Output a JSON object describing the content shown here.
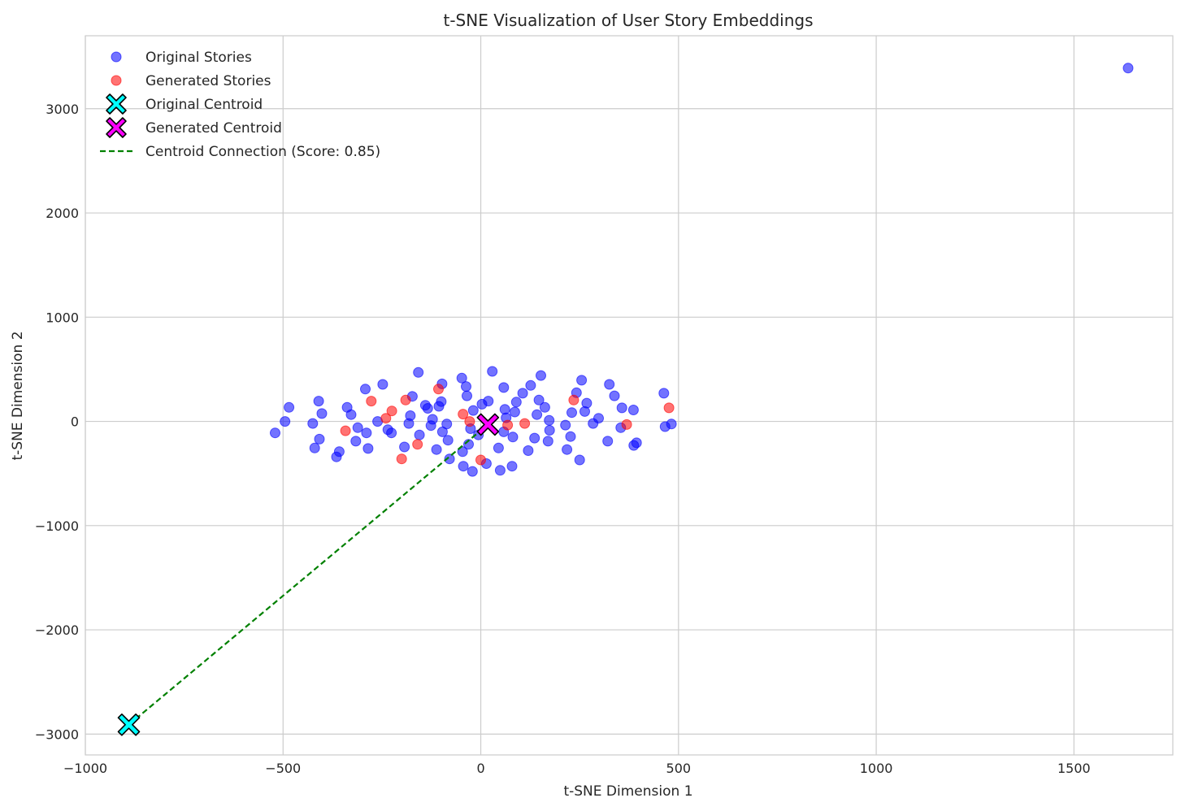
{
  "chart_data": {
    "type": "scatter",
    "title": "t-SNE Visualization of User Story Embeddings",
    "xlabel": "t-SNE Dimension 1",
    "ylabel": "t-SNE Dimension 2",
    "xlim": [
      -1000,
      1750
    ],
    "ylim": [
      -3200,
      3700
    ],
    "xticks": [
      -1000,
      -500,
      0,
      500,
      1000,
      1500
    ],
    "yticks": [
      -3000,
      -2000,
      -1000,
      0,
      1000,
      2000,
      3000
    ],
    "xtick_labels": [
      "−1000",
      "−500",
      "0",
      "500",
      "1000",
      "1500"
    ],
    "ytick_labels": [
      "−3000",
      "−2000",
      "−1000",
      "0",
      "1000",
      "2000",
      "3000"
    ],
    "grid": true,
    "legend_position": "top-left",
    "series": [
      {
        "name": "Original Stories",
        "kind": "points",
        "color": "#0000ff",
        "x": [
          -520,
          -495,
          -485,
          -425,
          -420,
          -410,
          -408,
          -402,
          -365,
          -358,
          -338,
          -328,
          -316,
          -311,
          -292,
          -289,
          -285,
          -261,
          -248,
          -235,
          -226,
          -193,
          -182,
          -178,
          -173,
          -158,
          -155,
          -140,
          -134,
          -126,
          -122,
          -112,
          -106,
          -100,
          -98,
          -97,
          -86,
          -83,
          -79,
          -48,
          -46,
          -44,
          -37,
          -35,
          -31,
          -26,
          -21,
          -19,
          -6,
          3,
          14,
          19,
          29,
          45,
          49,
          58,
          58,
          61,
          64,
          79,
          81,
          86,
          90,
          106,
          120,
          126,
          136,
          142,
          147,
          152,
          162,
          170,
          173,
          174,
          214,
          218,
          227,
          230,
          242,
          250,
          255,
          263,
          268,
          284,
          298,
          321,
          325,
          338,
          354,
          357,
          386,
          387,
          394,
          463,
          466,
          482,
          1637
        ],
        "y": [
          -110,
          0,
          135,
          -20,
          -255,
          195,
          -170,
          75,
          -340,
          -290,
          135,
          65,
          -190,
          -60,
          310,
          -110,
          -260,
          0,
          355,
          -80,
          -110,
          -245,
          -20,
          55,
          240,
          470,
          -130,
          155,
          125,
          -40,
          20,
          -270,
          145,
          190,
          360,
          -100,
          -25,
          -180,
          -360,
          415,
          -290,
          -430,
          335,
          245,
          -220,
          -70,
          -480,
          105,
          -130,
          165,
          -405,
          195,
          480,
          -255,
          -470,
          -100,
          325,
          115,
          35,
          -430,
          -150,
          90,
          185,
          270,
          -280,
          345,
          -160,
          65,
          205,
          440,
          135,
          -190,
          10,
          -85,
          -35,
          -270,
          -145,
          85,
          275,
          -370,
          395,
          95,
          175,
          -20,
          30,
          -190,
          355,
          245,
          -60,
          130,
          110,
          -230,
          -205,
          270,
          -50,
          -25,
          3390
        ]
      },
      {
        "name": "Generated Stories",
        "kind": "points",
        "color": "#ff0000",
        "x": [
          -342,
          -277,
          -240,
          -225,
          -200,
          -190,
          -160,
          -107,
          -45,
          -28,
          0,
          68,
          111,
          235,
          369,
          476
        ],
        "y": [
          -90,
          195,
          30,
          100,
          -360,
          205,
          -220,
          310,
          70,
          0,
          -370,
          -35,
          -20,
          205,
          -30,
          130
        ]
      },
      {
        "name": "Original Centroid",
        "kind": "centroid",
        "color": "#00ffff",
        "x": [
          -890
        ],
        "y": [
          -2910
        ]
      },
      {
        "name": "Generated Centroid",
        "kind": "centroid",
        "color": "#ff00ff",
        "x": [
          18
        ],
        "y": [
          -30
        ]
      },
      {
        "name": "Centroid Connection (Score: 0.85)",
        "kind": "line",
        "color": "#008000",
        "x": [
          -890,
          18
        ],
        "y": [
          -2910,
          -30
        ]
      }
    ]
  }
}
